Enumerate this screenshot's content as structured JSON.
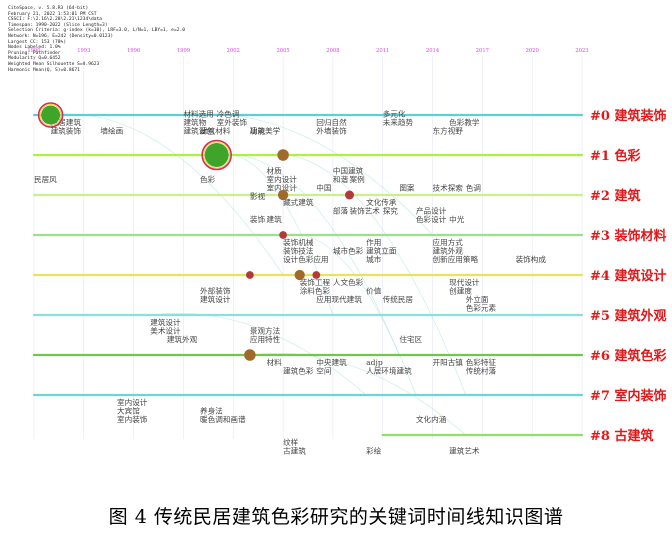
{
  "meta_lines": [
    "CiteSpace, v. 5.8.R3 (64-bit)",
    "February 21, 2022 1:53:01 PM CST",
    "CSSCI: F:\\2.16\\2.28\\2.21\\1234\\data",
    "Timespan: 1990-2022 (Slice Length=3)",
    "Selection Criteria: g-index (k=10), LRF=3.0, L/N=1, LBY=1, e=2.0",
    "Network: N=196, E=242 (Density=0.0123)",
    "Largest CC: 153 (78%)",
    "Nodes Labeled: 1.0%",
    "Pruning: Pathfinder",
    "Modularity Q=0.6452",
    "Weighted Mean Silhouette S=0.9623",
    "Harmonic Mean(Q, S)=0.8671"
  ],
  "caption": "图 4 传统民居建筑色彩研究的关键词时间线知识图谱",
  "chart_data": {
    "type": "timeline",
    "years": [
      "1990",
      "1993",
      "1996",
      "1999",
      "2002",
      "2005",
      "2008",
      "2011",
      "2014",
      "2017",
      "2020",
      "2023"
    ],
    "year_axis_labels": [
      "1990",
      "1993",
      "1996",
      "1999",
      "2002",
      "2005",
      "2008",
      "2011",
      "2014",
      "2017",
      "2020",
      "2023"
    ],
    "clusters": [
      {
        "id": "#0",
        "label": "建筑装饰",
        "start": 1990,
        "end": 2023,
        "color": "#5ad1d8"
      },
      {
        "id": "#1",
        "label": "色彩",
        "start": 1990,
        "end": 2023,
        "color": "#aef23d"
      },
      {
        "id": "#2",
        "label": "建筑",
        "start": 1990,
        "end": 2023,
        "color": "#c9f08a"
      },
      {
        "id": "#3",
        "label": "装饰材料",
        "start": 1990,
        "end": 2023,
        "color": "#9be08a"
      },
      {
        "id": "#4",
        "label": "建筑设计",
        "start": 1990,
        "end": 2023,
        "color": "#e8e35a"
      },
      {
        "id": "#5",
        "label": "建筑外观",
        "start": 1990,
        "end": 2023,
        "color": "#8adfe0"
      },
      {
        "id": "#6",
        "label": "建筑色彩",
        "start": 1990,
        "end": 2023,
        "color": "#6ec94a"
      },
      {
        "id": "#7",
        "label": "室内装饰",
        "start": 1990,
        "end": 2023,
        "color": "#6ad6d6"
      },
      {
        "id": "#8",
        "label": "古建筑",
        "start": 2011,
        "end": 2023,
        "color": "#8fe06a"
      }
    ],
    "nodes": [
      {
        "label": "民居建筑",
        "year": 1991,
        "cluster": 0,
        "size": 6
      },
      {
        "label": "建筑色彩",
        "year": 2001,
        "cluster": 1,
        "size": 8
      },
      {
        "label": "材质",
        "year": 2005,
        "cluster": 1,
        "size": 3
      },
      {
        "label": "中国建筑",
        "year": 2009,
        "cluster": 2,
        "size": 2
      },
      {
        "label": "影视",
        "year": 2005,
        "cluster": 2,
        "size": 2.5
      },
      {
        "label": "装饰机械",
        "year": 2005,
        "cluster": 3,
        "size": 1.5
      },
      {
        "label": "装饰工程",
        "year": 2006,
        "cluster": 4,
        "size": 2.5
      },
      {
        "label": "外部装饰",
        "year": 2003,
        "cluster": 4,
        "size": 1.5
      },
      {
        "label": "人文色彩",
        "year": 2007,
        "cluster": 4,
        "size": 1.5
      },
      {
        "label": "建筑",
        "year": 2003,
        "cluster": 6,
        "size": 3
      }
    ],
    "keywords": [
      {
        "text": "民居建筑",
        "year": 1991,
        "cluster": 0,
        "row": 0
      },
      {
        "text": "建筑装饰",
        "year": 1991,
        "cluster": 0,
        "row": 1
      },
      {
        "text": "墙绘画",
        "year": 1994,
        "cluster": 0,
        "row": 1
      },
      {
        "text": "材料选用",
        "year": 1999,
        "cluster": 0,
        "row": -1
      },
      {
        "text": "冷色调",
        "year": 2001,
        "cluster": 0,
        "row": -1
      },
      {
        "text": "建筑物",
        "year": 1999,
        "cluster": 0,
        "row": 0
      },
      {
        "text": "室外装饰",
        "year": 2001,
        "cluster": 0,
        "row": 0
      },
      {
        "text": "功能",
        "year": 2003,
        "cluster": 0,
        "row": 1
      },
      {
        "text": "建筑设色",
        "year": 1999,
        "cluster": 0,
        "row": 1
      },
      {
        "text": "建筑材料",
        "year": 2000,
        "cluster": 0,
        "row": 1
      },
      {
        "text": "建筑美学",
        "year": 2003,
        "cluster": 0,
        "row": 1
      },
      {
        "text": "回归自然",
        "year": 2007,
        "cluster": 0,
        "row": 0
      },
      {
        "text": "外墙装饰",
        "year": 2007,
        "cluster": 0,
        "row": 1
      },
      {
        "text": "多元化",
        "year": 2011,
        "cluster": 0,
        "row": -1
      },
      {
        "text": "未来趋势",
        "year": 2011,
        "cluster": 0,
        "row": 0
      },
      {
        "text": "色彩教学",
        "year": 2015,
        "cluster": 0,
        "row": 0
      },
      {
        "text": "东方视野",
        "year": 2014,
        "cluster": 0,
        "row": 1
      },
      {
        "text": "民居风",
        "year": 1990,
        "cluster": 1,
        "row": 2
      },
      {
        "text": "色彩",
        "year": 2000,
        "cluster": 1,
        "row": 2
      },
      {
        "text": "材质",
        "year": 2004,
        "cluster": 1,
        "row": 1
      },
      {
        "text": "室内设计",
        "year": 2004,
        "cluster": 1,
        "row": 2
      },
      {
        "text": "室内设计",
        "year": 2004,
        "cluster": 1,
        "row": 3
      },
      {
        "text": "影视",
        "year": 2003,
        "cluster": 1,
        "row": 4
      },
      {
        "text": "中国建筑",
        "year": 2008,
        "cluster": 1,
        "row": 1
      },
      {
        "text": "和谐",
        "year": 2008,
        "cluster": 1,
        "row": 2
      },
      {
        "text": "案例",
        "year": 2009,
        "cluster": 1,
        "row": 2
      },
      {
        "text": "中国",
        "year": 2007,
        "cluster": 1,
        "row": 3
      },
      {
        "text": "图案",
        "year": 2012,
        "cluster": 1,
        "row": 3
      },
      {
        "text": "技术探索",
        "year": 2014,
        "cluster": 1,
        "row": 3
      },
      {
        "text": "色调",
        "year": 2016,
        "cluster": 1,
        "row": 3
      },
      {
        "text": "藏式建筑",
        "year": 2005,
        "cluster": 2,
        "row": 0
      },
      {
        "text": "文化传承",
        "year": 2010,
        "cluster": 2,
        "row": 0
      },
      {
        "text": "部落",
        "year": 2008,
        "cluster": 2,
        "row": 1
      },
      {
        "text": "装饰艺术",
        "year": 2009,
        "cluster": 2,
        "row": 1
      },
      {
        "text": "探究",
        "year": 2011,
        "cluster": 2,
        "row": 1
      },
      {
        "text": "产品设计",
        "year": 2013,
        "cluster": 2,
        "row": 1
      },
      {
        "text": "装饰",
        "year": 2003,
        "cluster": 2,
        "row": 2
      },
      {
        "text": "建筑",
        "year": 2004,
        "cluster": 2,
        "row": 2
      },
      {
        "text": "色彩设计",
        "year": 2013,
        "cluster": 2,
        "row": 2
      },
      {
        "text": "中光",
        "year": 2015,
        "cluster": 2,
        "row": 2
      },
      {
        "text": "装饰机械",
        "year": 2005,
        "cluster": 3,
        "row": 0
      },
      {
        "text": "装饰技法",
        "year": 2005,
        "cluster": 3,
        "row": 1
      },
      {
        "text": "设计色彩应用",
        "year": 2005,
        "cluster": 3,
        "row": 2
      },
      {
        "text": "城市色彩",
        "year": 2008,
        "cluster": 3,
        "row": 1
      },
      {
        "text": "作用",
        "year": 2010,
        "cluster": 3,
        "row": 0
      },
      {
        "text": "建筑立面",
        "year": 2010,
        "cluster": 3,
        "row": 1
      },
      {
        "text": "城市",
        "year": 2010,
        "cluster": 3,
        "row": 2
      },
      {
        "text": "应用方式",
        "year": 2014,
        "cluster": 3,
        "row": 0
      },
      {
        "text": "建筑外观",
        "year": 2014,
        "cluster": 3,
        "row": 1
      },
      {
        "text": "创新应用策略",
        "year": 2014,
        "cluster": 3,
        "row": 2
      },
      {
        "text": "装饰构成",
        "year": 2019,
        "cluster": 3,
        "row": 2
      },
      {
        "text": "装饰工程",
        "year": 2006,
        "cluster": 4,
        "row": 0
      },
      {
        "text": "涂料色彩",
        "year": 2006,
        "cluster": 4,
        "row": 1
      },
      {
        "text": "人文色彩",
        "year": 2008,
        "cluster": 4,
        "row": 0
      },
      {
        "text": "价值",
        "year": 2010,
        "cluster": 4,
        "row": 1
      },
      {
        "text": "现代设计",
        "year": 2015,
        "cluster": 4,
        "row": 0
      },
      {
        "text": "创建度",
        "year": 2015,
        "cluster": 4,
        "row": 1
      },
      {
        "text": "外部装饰",
        "year": 2000,
        "cluster": 4,
        "row": 1
      },
      {
        "text": "建筑设计",
        "year": 2000,
        "cluster": 4,
        "row": 2
      },
      {
        "text": "应用现代建筑",
        "year": 2007,
        "cluster": 4,
        "row": 2
      },
      {
        "text": "传统民居",
        "year": 2011,
        "cluster": 4,
        "row": 2
      },
      {
        "text": "外立面",
        "year": 2016,
        "cluster": 4,
        "row": 2
      },
      {
        "text": "色彩元素",
        "year": 2016,
        "cluster": 4,
        "row": 3
      },
      {
        "text": "建筑设计",
        "year": 1997,
        "cluster": 5,
        "row": 0
      },
      {
        "text": "美术设计",
        "year": 1997,
        "cluster": 5,
        "row": 1
      },
      {
        "text": "建筑外观",
        "year": 1998,
        "cluster": 5,
        "row": 2
      },
      {
        "text": "景观方法",
        "year": 2003,
        "cluster": 5,
        "row": 1
      },
      {
        "text": "应用特性",
        "year": 2003,
        "cluster": 5,
        "row": 2
      },
      {
        "text": "住宅区",
        "year": 2012,
        "cluster": 5,
        "row": 2
      },
      {
        "text": "材料",
        "year": 2004,
        "cluster": 6,
        "row": 0
      },
      {
        "text": "中央建筑",
        "year": 2007,
        "cluster": 6,
        "row": 0
      },
      {
        "text": "建筑色彩",
        "year": 2005,
        "cluster": 6,
        "row": 1
      },
      {
        "text": "空间",
        "year": 2007,
        "cluster": 6,
        "row": 1
      },
      {
        "text": "adjp",
        "year": 2010,
        "cluster": 6,
        "row": 0
      },
      {
        "text": "人居环境建筑",
        "year": 2010,
        "cluster": 6,
        "row": 1
      },
      {
        "text": "开阳古镇",
        "year": 2014,
        "cluster": 6,
        "row": 0
      },
      {
        "text": "色彩特征",
        "year": 2016,
        "cluster": 6,
        "row": 0
      },
      {
        "text": "传统村落",
        "year": 2016,
        "cluster": 6,
        "row": 1
      },
      {
        "text": "室内设计",
        "year": 1995,
        "cluster": 7,
        "row": 0
      },
      {
        "text": "大宾馆",
        "year": 1995,
        "cluster": 7,
        "row": 1
      },
      {
        "text": "室内装饰",
        "year": 1995,
        "cluster": 7,
        "row": 2
      },
      {
        "text": "养身法",
        "year": 2000,
        "cluster": 7,
        "row": 1
      },
      {
        "text": "暖色调和画谱",
        "year": 2000,
        "cluster": 7,
        "row": 2
      },
      {
        "text": "文化内涵",
        "year": 2013,
        "cluster": 7,
        "row": 2
      },
      {
        "text": "纹样",
        "year": 2005,
        "cluster": 8,
        "row": 0
      },
      {
        "text": "古建筑",
        "year": 2005,
        "cluster": 8,
        "row": 1
      },
      {
        "text": "彩绘",
        "year": 2010,
        "cluster": 8,
        "row": 1
      },
      {
        "text": "建筑艺术",
        "year": 2015,
        "cluster": 8,
        "row": 1
      }
    ]
  }
}
